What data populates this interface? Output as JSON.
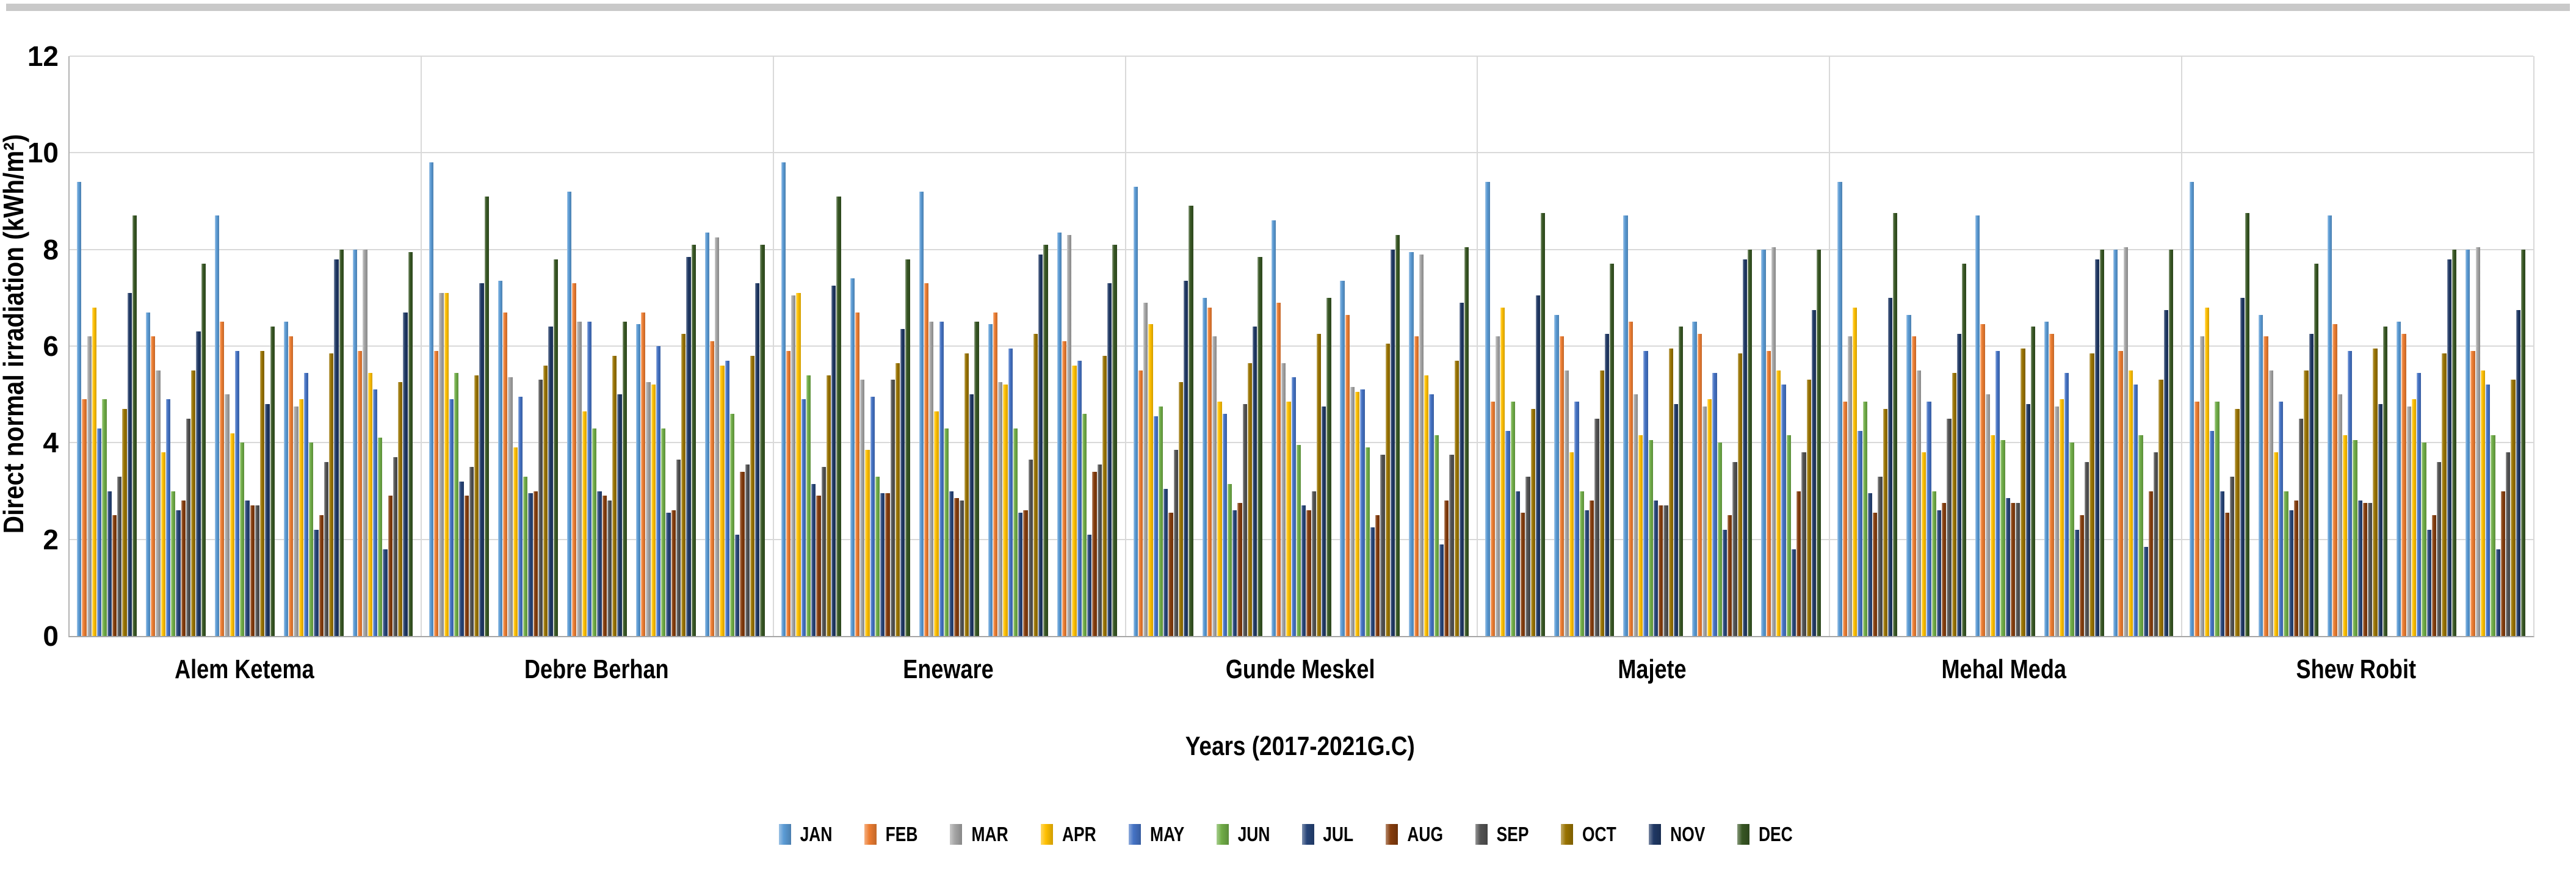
{
  "chart_data": {
    "type": "bar",
    "title": "",
    "ylabel": "Direct normal irradiation (kWh/m²)",
    "xlabel": "Years (2017-2021G.C)",
    "ylim": [
      0,
      12
    ],
    "ytick_step": 2,
    "yticks": [
      "0",
      "2",
      "4",
      "6",
      "8",
      "10",
      "12"
    ],
    "grid": true,
    "legend_position": "bottom",
    "locations": [
      "Alem Ketema",
      "Debre Berhan",
      "Eneware",
      "Gunde Meskel",
      "Majete",
      "Mehal Meda",
      "Shew Robit"
    ],
    "years": [
      "2017",
      "2018",
      "2019",
      "2020",
      "2021"
    ],
    "months": [
      {
        "label": "JAN",
        "color": "#5B9BD5"
      },
      {
        "label": "FEB",
        "color": "#ED7D31"
      },
      {
        "label": "MAR",
        "color": "#A5A5A5"
      },
      {
        "label": "APR",
        "color": "#FFC000"
      },
      {
        "label": "MAY",
        "color": "#4472C4"
      },
      {
        "label": "JUN",
        "color": "#70AD47"
      },
      {
        "label": "JUL",
        "color": "#264478"
      },
      {
        "label": "AUG",
        "color": "#843C0C"
      },
      {
        "label": "SEP",
        "color": "#525252"
      },
      {
        "label": "OCT",
        "color": "#997300"
      },
      {
        "label": "NOV",
        "color": "#1F3864"
      },
      {
        "label": "DEC",
        "color": "#375623"
      }
    ],
    "values": [
      [
        [
          9.4,
          4.9,
          6.2,
          6.8,
          4.3,
          4.9,
          3.0,
          2.5,
          3.3,
          4.7,
          7.1,
          8.7
        ],
        [
          6.7,
          6.2,
          5.5,
          3.8,
          4.9,
          3.0,
          2.6,
          2.8,
          4.5,
          5.5,
          6.3,
          7.7
        ],
        [
          8.7,
          6.5,
          5.0,
          4.2,
          5.9,
          4.0,
          2.8,
          2.7,
          2.7,
          5.9,
          4.8,
          6.4
        ],
        [
          6.5,
          6.2,
          4.75,
          4.9,
          5.45,
          4.0,
          2.2,
          2.5,
          3.6,
          5.85,
          7.8,
          8.0
        ],
        [
          8.0,
          5.9,
          8.0,
          5.45,
          5.1,
          4.1,
          1.8,
          2.9,
          3.7,
          5.25,
          6.7,
          7.95
        ]
      ],
      [
        [
          9.8,
          5.9,
          7.1,
          7.1,
          4.9,
          5.45,
          3.2,
          2.9,
          3.5,
          5.4,
          7.3,
          9.1
        ],
        [
          7.35,
          6.7,
          5.35,
          3.9,
          4.95,
          3.3,
          2.95,
          3.0,
          5.3,
          5.6,
          6.4,
          7.8
        ],
        [
          9.2,
          7.3,
          6.5,
          4.65,
          6.5,
          4.3,
          3.0,
          2.9,
          2.8,
          5.8,
          5.0,
          6.5
        ],
        [
          6.45,
          6.7,
          5.25,
          5.2,
          6.0,
          4.3,
          2.55,
          2.6,
          3.65,
          6.25,
          7.85,
          8.1
        ],
        [
          8.35,
          6.1,
          8.25,
          5.6,
          5.7,
          4.6,
          2.1,
          3.4,
          3.55,
          5.8,
          7.3,
          8.1
        ]
      ],
      [
        [
          9.8,
          5.9,
          7.05,
          7.1,
          4.9,
          5.4,
          3.15,
          2.9,
          3.5,
          5.4,
          7.25,
          9.1
        ],
        [
          7.4,
          6.7,
          5.3,
          3.85,
          4.95,
          3.3,
          2.95,
          2.95,
          5.3,
          5.65,
          6.35,
          7.8
        ],
        [
          9.2,
          7.3,
          6.5,
          4.65,
          6.5,
          4.3,
          3.0,
          2.85,
          2.8,
          5.85,
          5.0,
          6.5
        ],
        [
          6.45,
          6.7,
          5.25,
          5.2,
          5.95,
          4.3,
          2.55,
          2.6,
          3.65,
          6.25,
          7.9,
          8.1
        ],
        [
          8.35,
          6.1,
          8.3,
          5.6,
          5.7,
          4.6,
          2.1,
          3.4,
          3.55,
          5.8,
          7.3,
          8.1
        ]
      ],
      [
        [
          9.3,
          5.5,
          6.9,
          6.45,
          4.55,
          4.75,
          3.05,
          2.55,
          3.85,
          5.25,
          7.35,
          8.9
        ],
        [
          7.0,
          6.8,
          6.2,
          4.85,
          4.6,
          3.15,
          2.6,
          2.75,
          4.8,
          5.65,
          6.4,
          7.85
        ],
        [
          8.6,
          6.9,
          5.65,
          4.85,
          5.35,
          3.95,
          2.7,
          2.6,
          3.0,
          6.25,
          4.75,
          7.0
        ],
        [
          7.35,
          6.65,
          5.15,
          5.05,
          5.1,
          3.9,
          2.25,
          2.5,
          3.75,
          6.05,
          8.0,
          8.3
        ],
        [
          7.95,
          6.2,
          7.9,
          5.4,
          5.0,
          4.15,
          1.9,
          2.8,
          3.75,
          5.7,
          6.9,
          8.05
        ]
      ],
      [
        [
          9.4,
          4.85,
          6.2,
          6.8,
          4.25,
          4.85,
          3.0,
          2.55,
          3.3,
          4.7,
          7.05,
          8.75
        ],
        [
          6.65,
          6.2,
          5.5,
          3.8,
          4.85,
          3.0,
          2.6,
          2.8,
          4.5,
          5.5,
          6.25,
          7.7
        ],
        [
          8.7,
          6.5,
          5.0,
          4.15,
          5.9,
          4.05,
          2.8,
          2.7,
          2.7,
          5.95,
          4.8,
          6.4
        ],
        [
          6.5,
          6.25,
          4.75,
          4.9,
          5.45,
          4.0,
          2.2,
          2.5,
          3.6,
          5.85,
          7.8,
          8.0
        ],
        [
          8.0,
          5.9,
          8.05,
          5.5,
          5.2,
          4.15,
          1.8,
          3.0,
          3.8,
          5.3,
          6.75,
          8.0
        ]
      ],
      [
        [
          9.4,
          4.85,
          6.2,
          6.8,
          4.25,
          4.85,
          2.95,
          2.55,
          3.3,
          4.7,
          7.0,
          8.75
        ],
        [
          6.65,
          6.2,
          5.5,
          3.8,
          4.85,
          3.0,
          2.6,
          2.75,
          4.5,
          5.45,
          6.25,
          7.7
        ],
        [
          8.7,
          6.45,
          5.0,
          4.15,
          5.9,
          4.05,
          2.85,
          2.75,
          2.75,
          5.95,
          4.8,
          6.4
        ],
        [
          6.5,
          6.25,
          4.75,
          4.9,
          5.45,
          4.0,
          2.2,
          2.5,
          3.6,
          5.85,
          7.8,
          8.0
        ],
        [
          8.0,
          5.9,
          8.05,
          5.5,
          5.2,
          4.15,
          1.85,
          3.0,
          3.8,
          5.3,
          6.75,
          8.0
        ]
      ],
      [
        [
          9.4,
          4.85,
          6.2,
          6.8,
          4.25,
          4.85,
          3.0,
          2.55,
          3.3,
          4.7,
          7.0,
          8.75
        ],
        [
          6.65,
          6.2,
          5.5,
          3.8,
          4.85,
          3.0,
          2.6,
          2.8,
          4.5,
          5.5,
          6.25,
          7.7
        ],
        [
          8.7,
          6.45,
          5.0,
          4.15,
          5.9,
          4.05,
          2.8,
          2.75,
          2.75,
          5.95,
          4.8,
          6.4
        ],
        [
          6.5,
          6.25,
          4.75,
          4.9,
          5.45,
          4.0,
          2.2,
          2.5,
          3.6,
          5.85,
          7.8,
          8.0
        ],
        [
          8.0,
          5.9,
          8.05,
          5.5,
          5.2,
          4.15,
          1.8,
          3.0,
          3.8,
          5.3,
          6.75,
          8.0
        ]
      ]
    ]
  }
}
